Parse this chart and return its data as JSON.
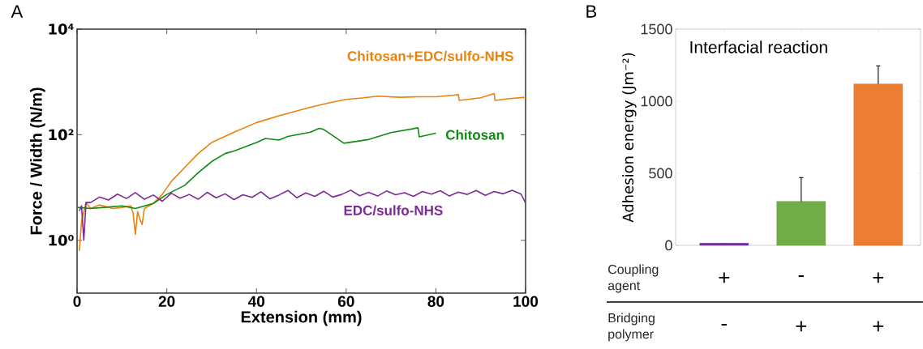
{
  "chart_data": [
    {
      "type": "line",
      "xlabel": "Extension (mm)",
      "ylabel": "Force / Width (N/m)",
      "log": "y",
      "xlim": [
        0,
        100
      ],
      "ylim": [
        0.1,
        10000
      ],
      "xticks": [
        0,
        20,
        40,
        60,
        80,
        100
      ],
      "yticks": [
        {
          "value": 1,
          "label": "10⁰"
        },
        {
          "value": 100,
          "label": "10²"
        },
        {
          "value": 10000,
          "label": "10⁴"
        }
      ],
      "annotations": [
        "A"
      ],
      "series": [
        {
          "name": "Chitosan+EDC/sulfo-NHS",
          "color": "#e8820c",
          "x": [
            0.5,
            1,
            2,
            3,
            5,
            8,
            10,
            12,
            12.5,
            13,
            13.5,
            14,
            14.5,
            15,
            17,
            19,
            21,
            24,
            27,
            30,
            35,
            40,
            45,
            52,
            56,
            60,
            64,
            67,
            72,
            76,
            80,
            84,
            85,
            85.2,
            90,
            93,
            93.2,
            96,
            100
          ],
          "values": [
            0.63,
            2.3,
            5.2,
            4.0,
            4.7,
            4.0,
            4.2,
            4.5,
            3.2,
            1.3,
            3.5,
            2.5,
            2.0,
            4.0,
            5.0,
            7.4,
            13,
            24,
            44,
            71,
            112,
            170,
            229,
            331,
            398,
            468,
            501,
            537,
            513,
            525,
            525,
            562,
            575,
            447,
            501,
            603,
            447,
            479,
            513
          ]
        },
        {
          "name": "Chitosan",
          "color": "#108a10",
          "x": [
            0,
            3,
            6,
            10,
            13,
            17,
            20,
            24,
            27,
            30,
            33,
            35,
            40,
            42,
            45,
            47,
            52,
            54,
            55,
            59.5,
            65,
            70,
            76,
            76.3,
            80
          ],
          "values": [
            4.2,
            4.0,
            4.2,
            4.5,
            4.0,
            5.0,
            7.4,
            11,
            19,
            31,
            44,
            49,
            71,
            85,
            79,
            93,
            112,
            132,
            126,
            69,
            81,
            110,
            135,
            91,
            107
          ]
        },
        {
          "name": "EDC/sulfo-NHS",
          "color": "#7d2a96",
          "x": [
            0.5,
            1,
            1.5,
            2,
            3,
            5,
            7,
            9,
            11,
            13,
            15,
            17,
            19,
            21,
            23,
            25,
            27,
            29,
            31,
            33,
            35,
            37,
            39,
            41,
            43,
            45,
            47,
            49,
            51,
            53,
            55,
            57,
            59,
            61,
            63,
            65,
            67,
            69,
            71,
            73,
            75,
            77,
            79,
            81,
            83,
            85,
            87,
            89,
            91,
            93,
            95,
            97,
            99,
            100
          ],
          "values": [
            3.6,
            4.5,
            1.0,
            5.2,
            5.2,
            6.6,
            5.8,
            7.5,
            6.2,
            8.0,
            6.0,
            7.2,
            5.5,
            7.8,
            6.3,
            7.4,
            6.0,
            8.1,
            6.4,
            7.6,
            5.9,
            7.3,
            6.5,
            8.3,
            6.1,
            7.2,
            8.8,
            6.4,
            7.9,
            6.8,
            8.5,
            6.6,
            7.4,
            8.9,
            7.0,
            8.1,
            6.9,
            8.6,
            7.3,
            8.0,
            6.8,
            8.4,
            7.5,
            8.7,
            6.9,
            8.2,
            7.4,
            8.8,
            7.1,
            8.4,
            7.6,
            8.9,
            7.5,
            5.1
          ]
        }
      ]
    },
    {
      "type": "bar",
      "title": "Interfacial reaction",
      "ylabel": "Adhesion energy (Jm⁻²)",
      "categories": [
        null,
        null,
        null
      ],
      "values": [
        15,
        305,
        1120
      ],
      "colors": [
        "#7030a0",
        "#70ad47",
        "#ed7d31"
      ],
      "errors": [
        null,
        [
          305,
          470
        ],
        [
          1120,
          1245
        ]
      ],
      "ylim": [
        0,
        1500
      ],
      "yticks": [
        0,
        500,
        1000,
        1500
      ],
      "annotations": [
        "B",
        "Coupling agent",
        "+",
        "-",
        "+",
        "Bridging polymer",
        "-",
        "+",
        "+"
      ]
    }
  ]
}
